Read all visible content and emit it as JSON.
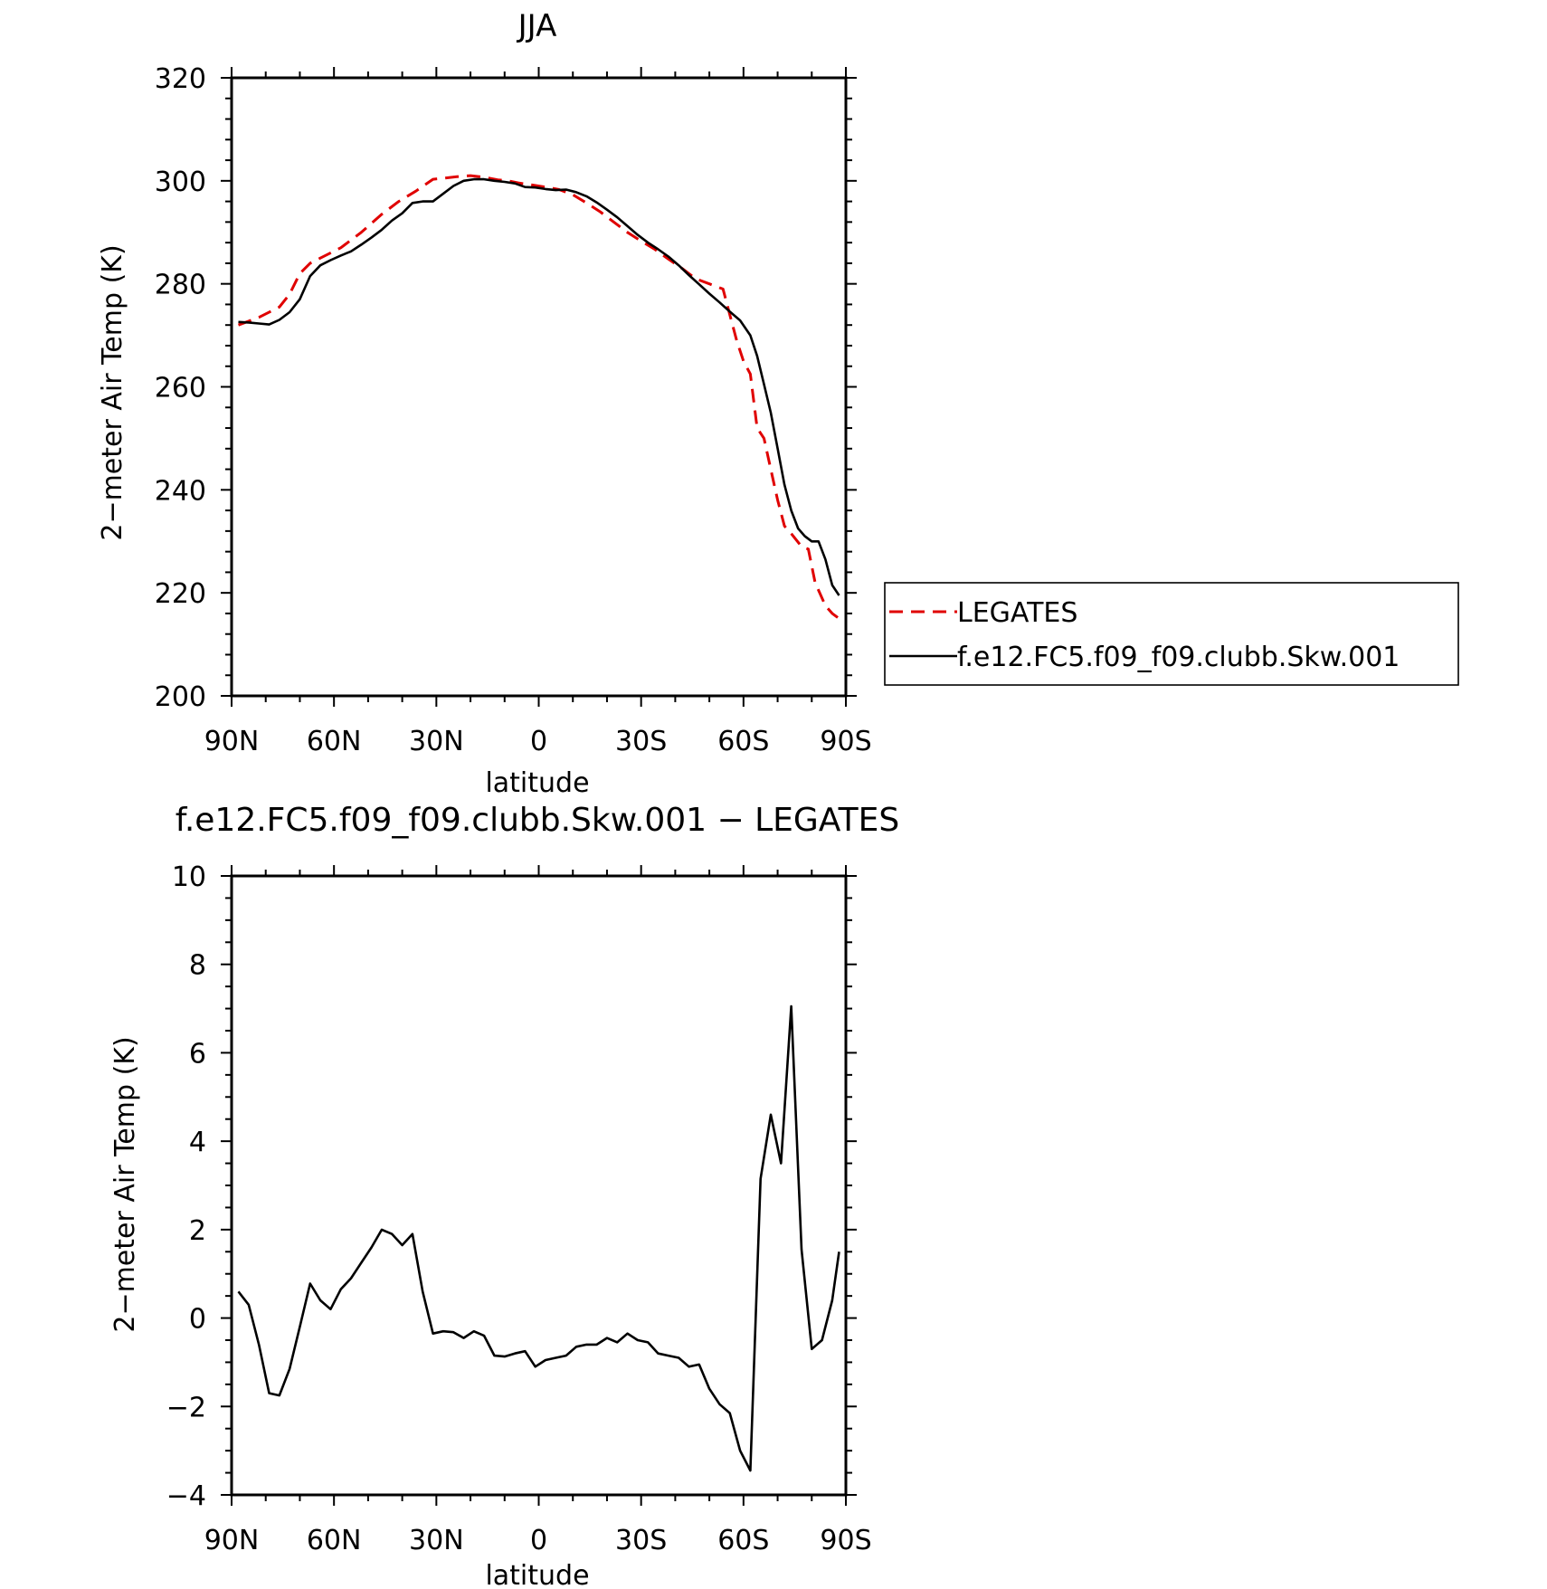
{
  "chart_data": [
    {
      "type": "line",
      "title": "JJA",
      "xlabel": "latitude",
      "ylabel": "2−meter Air Temp (K)",
      "xlim": [
        90,
        -90
      ],
      "ylim": [
        200,
        320
      ],
      "x_ticks": [
        90,
        60,
        30,
        0,
        -30,
        -60,
        -90
      ],
      "x_tick_labels": [
        "90N",
        "60N",
        "30N",
        "0",
        "30S",
        "60S",
        "90S"
      ],
      "y_ticks": [
        200,
        220,
        240,
        260,
        280,
        300,
        320
      ],
      "y_tick_labels": [
        "200",
        "220",
        "240",
        "260",
        "280",
        "300",
        "320"
      ],
      "legend_placement": "right",
      "series": [
        {
          "name": "LEGATES",
          "color": "#e00000",
          "dash": "dashed",
          "x": [
            88,
            82,
            76,
            73,
            70,
            67,
            64,
            58,
            52,
            46,
            41,
            36,
            31,
            28,
            24,
            20,
            16,
            12,
            9,
            6,
            2,
            -2,
            -6,
            -10,
            -14,
            -18,
            -22,
            -26,
            -30,
            -34,
            -38,
            -42,
            -46,
            -50,
            -54,
            -56,
            -58,
            -60,
            -62,
            -64,
            -66,
            -68,
            -70,
            -72,
            -74,
            -77,
            -79,
            -81,
            -84,
            -86,
            -88
          ],
          "y": [
            272,
            273.5,
            275.5,
            278,
            282,
            284,
            285,
            287,
            290,
            293.5,
            296,
            298,
            300.3,
            300.5,
            300.8,
            301,
            300.7,
            300.2,
            300,
            299.6,
            299.2,
            298.8,
            298.3,
            297.3,
            295.7,
            294,
            292,
            290,
            288.3,
            286.7,
            284.8,
            283,
            281,
            280,
            279,
            274,
            269,
            265,
            262.5,
            252,
            250,
            244,
            238,
            233,
            231.5,
            229,
            228.5,
            222,
            217.5,
            216,
            215
          ]
        },
        {
          "name": "f.e12.FC5.f09_f09.clubb.Skw.001",
          "color": "#000000",
          "dash": "solid",
          "x": [
            88,
            85,
            82,
            79,
            76,
            73,
            70,
            67,
            64,
            61,
            58,
            55,
            52,
            49,
            46,
            43,
            40,
            37,
            34,
            31,
            28,
            25,
            22,
            19,
            16,
            13,
            10,
            7,
            4,
            1,
            -2,
            -5,
            -8,
            -11,
            -14,
            -17,
            -20,
            -23,
            -26,
            -29,
            -32,
            -35,
            -38,
            -41,
            -44,
            -47,
            -50,
            -53,
            -56,
            -59,
            -62,
            -64,
            -66,
            -68,
            -70,
            -72,
            -74,
            -76,
            -78,
            -80,
            -82,
            -84,
            -86,
            -88
          ],
          "y": [
            272.6,
            272.5,
            272.3,
            272.1,
            273,
            274.5,
            277,
            281.5,
            283.6,
            284.6,
            285.5,
            286.3,
            287.6,
            289,
            290.5,
            292.3,
            293.7,
            295.7,
            296,
            296,
            297.5,
            299,
            300,
            300.3,
            300.3,
            300,
            299.8,
            299.5,
            298.8,
            298.7,
            298.4,
            298.2,
            298.3,
            297.8,
            297,
            295.8,
            294.4,
            292.9,
            291.2,
            289.5,
            288,
            286.7,
            285.3,
            283.6,
            281.7,
            279.9,
            278.1,
            276.4,
            274.6,
            272.9,
            270,
            266,
            260.5,
            255,
            248,
            241,
            236,
            232.5,
            231,
            230,
            230,
            226.5,
            221.5,
            219.5
          ]
        }
      ]
    },
    {
      "type": "line",
      "title": "f.e12.FC5.f09_f09.clubb.Skw.001 − LEGATES",
      "xlabel": "latitude",
      "ylabel": "2−meter Air Temp (K)",
      "xlim": [
        90,
        -90
      ],
      "ylim": [
        -4,
        10
      ],
      "x_ticks": [
        90,
        60,
        30,
        0,
        -30,
        -60,
        -90
      ],
      "x_tick_labels": [
        "90N",
        "60N",
        "30N",
        "0",
        "30S",
        "60S",
        "90S"
      ],
      "y_ticks": [
        -4,
        -2,
        0,
        2,
        4,
        6,
        8,
        10
      ],
      "y_tick_labels": [
        "−4",
        "−2",
        "0",
        "2",
        "4",
        "6",
        "8",
        "10"
      ],
      "series": [
        {
          "color": "#000000",
          "dash": "solid",
          "x": [
            88,
            85,
            82,
            79,
            76,
            73,
            70,
            67,
            64,
            61,
            58,
            55,
            52,
            49,
            46,
            43,
            40,
            37,
            34,
            31,
            28,
            25,
            22,
            19,
            16,
            13,
            10,
            7,
            4,
            1,
            -2,
            -5,
            -8,
            -11,
            -14,
            -17,
            -20,
            -23,
            -26,
            -29,
            -32,
            -35,
            -38,
            -41,
            -44,
            -47,
            -50,
            -53,
            -56,
            -59,
            -62,
            -65,
            -68,
            -71,
            -74,
            -77,
            -80,
            -83,
            -86,
            -88
          ],
          "y": [
            0.6,
            0.3,
            -0.6,
            -1.7,
            -1.75,
            -1.15,
            -0.2,
            0.78,
            0.4,
            0.2,
            0.65,
            0.9,
            1.25,
            1.6,
            2.0,
            1.9,
            1.65,
            1.9,
            0.6,
            -0.35,
            -0.3,
            -0.32,
            -0.45,
            -0.3,
            -0.4,
            -0.85,
            -0.87,
            -0.8,
            -0.75,
            -1.1,
            -0.95,
            -0.9,
            -0.85,
            -0.65,
            -0.6,
            -0.6,
            -0.45,
            -0.55,
            -0.35,
            -0.5,
            -0.55,
            -0.8,
            -0.85,
            -0.9,
            -1.1,
            -1.05,
            -1.6,
            -1.95,
            -2.15,
            -3.0,
            -3.45,
            3.15,
            4.6,
            3.5,
            7.05,
            1.55,
            -0.7,
            -0.5,
            0.4,
            1.5
          ]
        }
      ]
    }
  ],
  "legend": {
    "items": [
      "LEGATES",
      "f.e12.FC5.f09_f09.clubb.Skw.001"
    ]
  }
}
